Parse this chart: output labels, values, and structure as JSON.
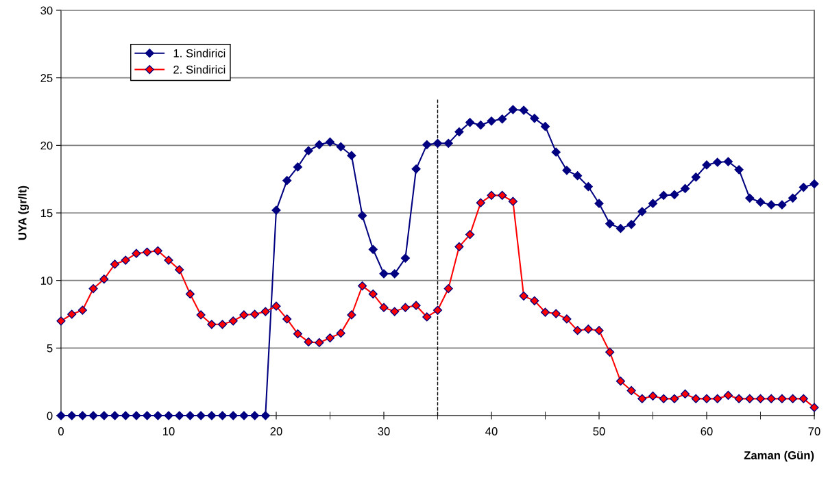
{
  "chart_data": {
    "type": "line",
    "xlabel": "Zaman (Gün)",
    "ylabel": "UYA (gr/lt)",
    "x": [
      0,
      1,
      2,
      3,
      4,
      5,
      6,
      7,
      8,
      9,
      10,
      11,
      12,
      13,
      14,
      15,
      16,
      17,
      18,
      19,
      20,
      21,
      22,
      23,
      24,
      25,
      26,
      27,
      28,
      29,
      30,
      31,
      32,
      33,
      34,
      35,
      36,
      37,
      38,
      39,
      40,
      41,
      42,
      43,
      44,
      45,
      46,
      47,
      48,
      49,
      50,
      51,
      52,
      53,
      54,
      55,
      56,
      57,
      58,
      59,
      60,
      61,
      62,
      63,
      64,
      65,
      66,
      67,
      68,
      69,
      70
    ],
    "series": [
      {
        "name": "1. Sindirici",
        "color": "#000080",
        "values": [
          0,
          0,
          0,
          0,
          0,
          0,
          0,
          0,
          0,
          0,
          0,
          0,
          0,
          0,
          0,
          0,
          0,
          0,
          0,
          0,
          15.2,
          17.4,
          18.4,
          19.6,
          20.05,
          20.25,
          19.9,
          19.25,
          14.8,
          12.3,
          10.5,
          10.5,
          11.65,
          18.25,
          20.05,
          20.15,
          20.15,
          21.0,
          21.7,
          21.5,
          21.8,
          21.95,
          22.65,
          22.6,
          22.0,
          21.4,
          19.5,
          18.15,
          17.75,
          16.95,
          15.7,
          14.2,
          13.85,
          14.15,
          15.1,
          15.7,
          16.3,
          16.35,
          16.8,
          17.65,
          18.55,
          18.75,
          18.8,
          18.2,
          16.1,
          15.8,
          15.6,
          15.6,
          16.1,
          16.9,
          17.15
        ]
      },
      {
        "name": "2. Sindirici",
        "color": "#ff0000",
        "values": [
          7.0,
          7.5,
          7.8,
          9.4,
          10.1,
          11.2,
          11.5,
          12.0,
          12.1,
          12.2,
          11.5,
          10.8,
          9.0,
          7.45,
          6.75,
          6.75,
          7.0,
          7.45,
          7.5,
          7.7,
          8.1,
          7.15,
          6.05,
          5.45,
          5.4,
          5.75,
          6.1,
          7.45,
          9.6,
          9.0,
          8.0,
          7.7,
          8.0,
          8.15,
          7.3,
          7.8,
          9.4,
          12.5,
          13.4,
          15.75,
          16.3,
          16.3,
          15.85,
          8.85,
          8.5,
          7.65,
          7.55,
          7.15,
          6.3,
          6.4,
          6.3,
          4.7,
          2.55,
          1.85,
          1.25,
          1.45,
          1.25,
          1.25,
          1.6,
          1.25,
          1.25,
          1.25,
          1.5,
          1.25,
          1.25,
          1.25,
          1.25,
          1.25,
          1.25,
          1.25,
          0.6
        ]
      }
    ],
    "xlim": [
      0,
      70
    ],
    "xticks": [
      0,
      10,
      20,
      30,
      40,
      50,
      60,
      70
    ],
    "ylim": [
      0,
      30
    ],
    "yticks": [
      0,
      5,
      10,
      15,
      20,
      25,
      30
    ],
    "ref_lines": [
      {
        "axis": "x",
        "value": 35,
        "color": "#000000",
        "line_style": "dashed"
      }
    ],
    "grid": "y",
    "legend": "top left",
    "marker": "diamond",
    "line_style": "solid"
  }
}
